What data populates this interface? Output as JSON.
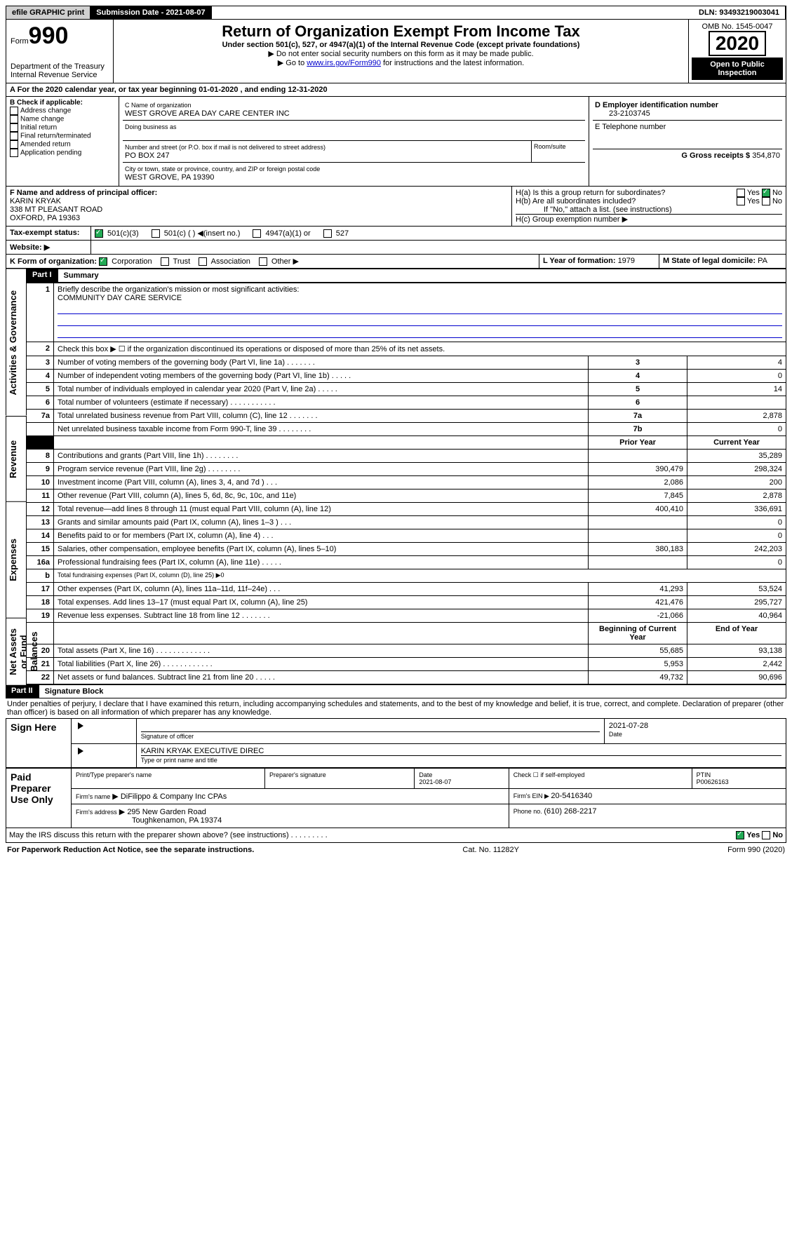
{
  "topbar": {
    "efile": "efile GRAPHIC print",
    "submission": "Submission Date - 2021-08-07",
    "dln": "DLN: 93493219003041"
  },
  "header": {
    "form_word": "Form",
    "form_num": "990",
    "dept": "Department of the Treasury\nInternal Revenue Service",
    "title": "Return of Organization Exempt From Income Tax",
    "subtitle": "Under section 501(c), 527, or 4947(a)(1) of the Internal Revenue Code (except private foundations)",
    "note1": "▶ Do not enter social security numbers on this form as it may be made public.",
    "note2": "▶ Go to ",
    "note2_link": "www.irs.gov/Form990",
    "note2_end": " for instructions and the latest information.",
    "omb": "OMB No. 1545-0047",
    "year": "2020",
    "open": "Open to Public Inspection"
  },
  "a_line": "A For the 2020 calendar year, or tax year beginning 01-01-2020     , and ending 12-31-2020",
  "b": {
    "label": "B Check if applicable:",
    "items": [
      "Address change",
      "Name change",
      "Initial return",
      "Final return/terminated",
      "Amended return",
      "Application pending"
    ]
  },
  "c": {
    "name_label": "C Name of organization",
    "name": "WEST GROVE AREA DAY CARE CENTER INC",
    "dba_label": "Doing business as",
    "street_label": "Number and street (or P.O. box if mail is not delivered to street address)",
    "room_label": "Room/suite",
    "street": "PO BOX 247",
    "city_label": "City or town, state or province, country, and ZIP or foreign postal code",
    "city": "WEST GROVE, PA  19390"
  },
  "d": {
    "label": "D Employer identification number",
    "value": "23-2103745"
  },
  "e": {
    "label": "E Telephone number"
  },
  "g": {
    "label": "G Gross receipts $ ",
    "value": "354,870"
  },
  "f": {
    "label": "F  Name and address of principal officer:",
    "name": "KARIN KRYAK",
    "addr1": "338 MT PLEASANT ROAD",
    "addr2": "OXFORD, PA  19363"
  },
  "h": {
    "a_label": "H(a)  Is this a group return for subordinates?",
    "b_label": "H(b)  Are all subordinates included?",
    "b_note": "If \"No,\" attach a list. (see instructions)",
    "c_label": "H(c)  Group exemption number ▶",
    "yes": "Yes",
    "no": "No"
  },
  "i": {
    "label": "Tax-exempt status:",
    "opts": [
      "501(c)(3)",
      "501(c) (  )  ◀(insert no.)",
      "4947(a)(1) or",
      "527"
    ]
  },
  "j": {
    "label": "Website: ▶"
  },
  "k": {
    "label": "K Form of organization:",
    "opts": [
      "Corporation",
      "Trust",
      "Association",
      "Other ▶"
    ]
  },
  "l": {
    "label": "L Year of formation: ",
    "value": "1979"
  },
  "m": {
    "label": "M State of legal domicile: ",
    "value": "PA"
  },
  "part1": {
    "title": "Part I",
    "name": "Summary"
  },
  "sidebars": {
    "gov": "Activities & Governance",
    "rev": "Revenue",
    "exp": "Expenses",
    "net": "Net Assets or Fund Balances"
  },
  "summary": {
    "l1": {
      "text": "Briefly describe the organization's mission or most significant activities:",
      "value": "COMMUNITY DAY CARE SERVICE"
    },
    "l2": "Check this box ▶ ☐  if the organization discontinued its operations or disposed of more than 25% of its net assets.",
    "rows_gov": [
      {
        "n": "3",
        "text": "Number of voting members of the governing body (Part VI, line 1a)  .    .    .    .    .    .    .",
        "box": "3",
        "val": "4"
      },
      {
        "n": "4",
        "text": "Number of independent voting members of the governing body (Part VI, line 1b)  .    .    .    .    .",
        "box": "4",
        "val": "0"
      },
      {
        "n": "5",
        "text": "Total number of individuals employed in calendar year 2020 (Part V, line 2a)  .    .    .    .    .",
        "box": "5",
        "val": "14"
      },
      {
        "n": "6",
        "text": "Total number of volunteers (estimate if necessary)  .    .    .    .    .    .    .    .    .    .    .",
        "box": "6",
        "val": ""
      },
      {
        "n": "7a",
        "text": "Total unrelated business revenue from Part VIII, column (C), line 12  .    .    .    .    .    .    .",
        "box": "7a",
        "val": "2,878"
      },
      {
        "n": "",
        "text": "Net unrelated business taxable income from Form 990-T, line 39  .    .    .    .    .    .    .    .",
        "box": "7b",
        "val": "0"
      }
    ],
    "hdr_prior": "Prior Year",
    "hdr_curr": "Current Year",
    "rows_rev": [
      {
        "n": "8",
        "text": "Contributions and grants (Part VIII, line 1h)  .    .    .    .    .    .    .    .",
        "p": "",
        "c": "35,289"
      },
      {
        "n": "9",
        "text": "Program service revenue (Part VIII, line 2g)  .    .    .    .    .    .    .    .",
        "p": "390,479",
        "c": "298,324"
      },
      {
        "n": "10",
        "text": "Investment income (Part VIII, column (A), lines 3, 4, and 7d )  .    .    .",
        "p": "2,086",
        "c": "200"
      },
      {
        "n": "11",
        "text": "Other revenue (Part VIII, column (A), lines 5, 6d, 8c, 9c, 10c, and 11e)",
        "p": "7,845",
        "c": "2,878"
      },
      {
        "n": "12",
        "text": "Total revenue—add lines 8 through 11 (must equal Part VIII, column (A), line 12)",
        "p": "400,410",
        "c": "336,691"
      }
    ],
    "rows_exp": [
      {
        "n": "13",
        "text": "Grants and similar amounts paid (Part IX, column (A), lines 1–3 )  .    .    .",
        "p": "",
        "c": "0"
      },
      {
        "n": "14",
        "text": "Benefits paid to or for members (Part IX, column (A), line 4)  .    .    .",
        "p": "",
        "c": "0"
      },
      {
        "n": "15",
        "text": "Salaries, other compensation, employee benefits (Part IX, column (A), lines 5–10)",
        "p": "380,183",
        "c": "242,203"
      },
      {
        "n": "16a",
        "text": "Professional fundraising fees (Part IX, column (A), line 11e)  .    .    .    .    .",
        "p": "",
        "c": "0"
      },
      {
        "n": "b",
        "text": "Total fundraising expenses (Part IX, column (D), line 25) ▶0",
        "p": null,
        "c": null
      },
      {
        "n": "17",
        "text": "Other expenses (Part IX, column (A), lines 11a–11d, 11f–24e)  .    .    .",
        "p": "41,293",
        "c": "53,524"
      },
      {
        "n": "18",
        "text": "Total expenses. Add lines 13–17 (must equal Part IX, column (A), line 25)",
        "p": "421,476",
        "c": "295,727"
      },
      {
        "n": "19",
        "text": "Revenue less expenses. Subtract line 18 from line 12  .    .    .    .    .    .    .",
        "p": "-21,066",
        "c": "40,964"
      }
    ],
    "hdr_beg": "Beginning of Current Year",
    "hdr_end": "End of Year",
    "rows_net": [
      {
        "n": "20",
        "text": "Total assets (Part X, line 16)  .    .    .    .    .    .    .    .    .    .    .    .    .",
        "p": "55,685",
        "c": "93,138"
      },
      {
        "n": "21",
        "text": "Total liabilities (Part X, line 26)  .    .    .    .    .    .    .    .    .    .    .    .",
        "p": "5,953",
        "c": "2,442"
      },
      {
        "n": "22",
        "text": "Net assets or fund balances. Subtract line 21 from line 20  .    .    .    .    .",
        "p": "49,732",
        "c": "90,696"
      }
    ]
  },
  "part2": {
    "title": "Part II",
    "name": "Signature Block",
    "declaration": "Under penalties of perjury, I declare that I have examined this return, including accompanying schedules and statements, and to the best of my knowledge and belief, it is true, correct, and complete. Declaration of preparer (other than officer) is based on all information of which preparer has any knowledge."
  },
  "sign": {
    "here": "Sign Here",
    "sig_label": "Signature of officer",
    "date": "2021-07-28",
    "date_label": "Date",
    "name": "KARIN KRYAK  EXECUTIVE DIREC",
    "name_label": "Type or print name and title"
  },
  "paid": {
    "label": "Paid Preparer Use Only",
    "h1": "Print/Type preparer's name",
    "h2": "Preparer's signature",
    "h3": "Date",
    "h3v": "2021-08-07",
    "h4": "Check ☐ if self-employed",
    "h5": "PTIN",
    "h5v": "P00626163",
    "firm_label": "Firm's name",
    "firm": "▶ DiFilippo & Company Inc CPAs",
    "ein_label": "Firm's EIN ▶ ",
    "ein": "20-5416340",
    "addr_label": "Firm's address",
    "addr": "▶ 295 New Garden Road",
    "addr2": "Toughkenamon, PA  19374",
    "phone_label": "Phone no. ",
    "phone": "(610) 268-2217"
  },
  "discuss": "May the IRS discuss this return with the preparer shown above? (see instructions)    .    .    .    .    .    .    .    .    .",
  "footer": {
    "left": "For Paperwork Reduction Act Notice, see the separate instructions.",
    "mid": "Cat. No. 11282Y",
    "right": "Form 990 (2020)"
  },
  "colors": {
    "black": "#000000",
    "green": "#22aa55",
    "link": "#0000cc"
  }
}
